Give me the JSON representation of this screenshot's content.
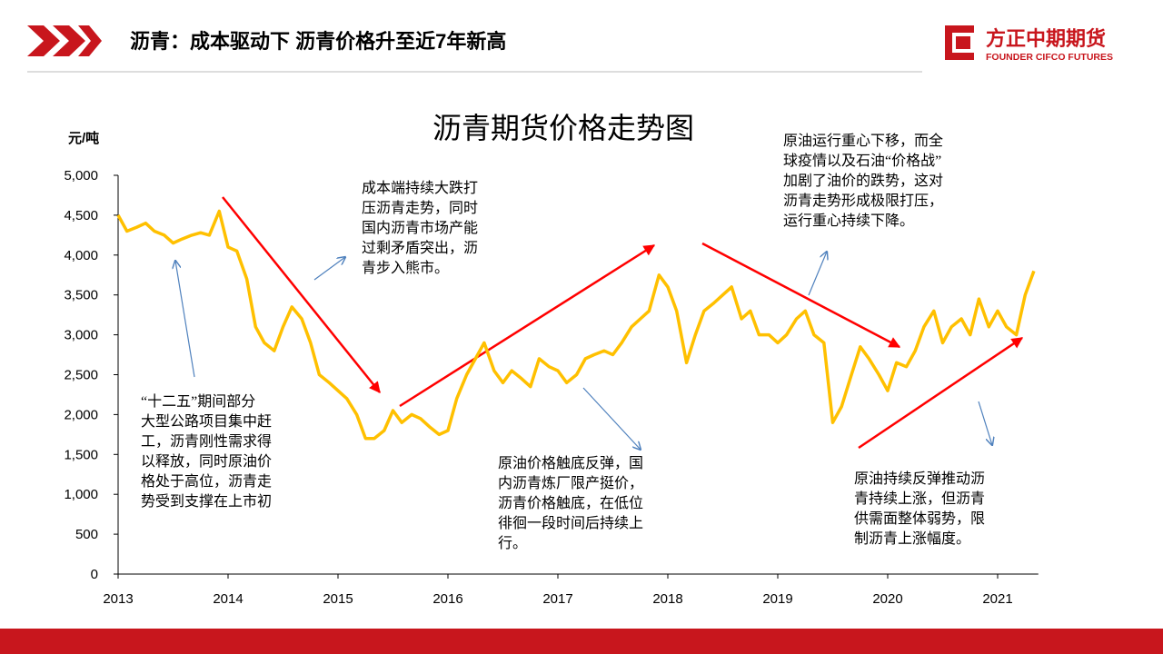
{
  "header": {
    "title": "沥青：成本驱动下 沥青价格升至近7年新高",
    "logo": "方正中期期货",
    "logo_en": "FOUNDER CIFCO FUTURES"
  },
  "chart_data": {
    "type": "line",
    "title": "沥青期货价格走势图",
    "y_label": "元/吨",
    "color": "#FFC000",
    "x": [
      2013,
      2013.08,
      2013.17,
      2013.25,
      2013.33,
      2013.42,
      2013.5,
      2013.58,
      2013.67,
      2013.75,
      2013.83,
      2013.92,
      2014,
      2014.08,
      2014.17,
      2014.25,
      2014.33,
      2014.42,
      2014.5,
      2014.58,
      2014.67,
      2014.75,
      2014.83,
      2014.92,
      2015,
      2015.08,
      2015.17,
      2015.25,
      2015.33,
      2015.42,
      2015.5,
      2015.58,
      2015.67,
      2015.75,
      2015.83,
      2015.92,
      2016,
      2016.08,
      2016.17,
      2016.25,
      2016.33,
      2016.42,
      2016.5,
      2016.58,
      2016.67,
      2016.75,
      2016.83,
      2016.92,
      2017,
      2017.08,
      2017.17,
      2017.25,
      2017.33,
      2017.42,
      2017.5,
      2017.58,
      2017.67,
      2017.75,
      2017.83,
      2017.92,
      2018,
      2018.08,
      2018.17,
      2018.25,
      2018.33,
      2018.42,
      2018.5,
      2018.58,
      2018.67,
      2018.75,
      2018.83,
      2018.92,
      2019,
      2019.08,
      2019.17,
      2019.25,
      2019.33,
      2019.42,
      2019.5,
      2019.58,
      2019.67,
      2019.75,
      2019.83,
      2019.92,
      2020,
      2020.08,
      2020.17,
      2020.25,
      2020.33,
      2020.42,
      2020.5,
      2020.58,
      2020.67,
      2020.75,
      2020.83,
      2020.92,
      2021,
      2021.08,
      2021.17,
      2021.25,
      2021.33
    ],
    "series": [
      {
        "name": "沥青期货",
        "color": "#FFC000",
        "values": [
          4500,
          4300,
          4350,
          4400,
          4300,
          4250,
          4150,
          4200,
          4250,
          4280,
          4250,
          4550,
          4100,
          4050,
          3700,
          3100,
          2900,
          2800,
          3100,
          3350,
          3200,
          2900,
          2500,
          2400,
          2300,
          2200,
          2000,
          1700,
          1700,
          1800,
          2050,
          1900,
          2000,
          1950,
          1850,
          1750,
          1800,
          2200,
          2500,
          2700,
          2900,
          2550,
          2400,
          2550,
          2450,
          2350,
          2700,
          2600,
          2550,
          2400,
          2500,
          2700,
          2750,
          2800,
          2750,
          2900,
          3100,
          3200,
          3300,
          3750,
          3600,
          3300,
          2650,
          3000,
          3300,
          3400,
          3500,
          3600,
          3200,
          3300,
          3000,
          3000,
          2900,
          3000,
          3200,
          3300,
          3000,
          2900,
          1900,
          2100,
          2500,
          2850,
          2700,
          2500,
          2300,
          2650,
          2600,
          2800,
          3100,
          3300,
          2900,
          3100,
          3200,
          3000,
          3450,
          3100,
          3300,
          3100,
          3000,
          3500,
          3800
        ]
      }
    ],
    "xlim": [
      2013,
      2021.37
    ],
    "xticks": [
      2013,
      2014,
      2015,
      2016,
      2017,
      2018,
      2019,
      2020,
      2021
    ],
    "ylim": [
      0,
      5000
    ],
    "yticks": [
      0,
      500,
      {
        "value": 1000,
        "label": "1,000"
      },
      {
        "value": 1500,
        "label": "1,500"
      },
      {
        "value": 2000,
        "label": "2,000"
      },
      {
        "value": 2500,
        "label": "2,500"
      },
      {
        "value": 3000,
        "label": "3,000"
      },
      {
        "value": 3500,
        "label": "3,500"
      },
      {
        "value": 4000,
        "label": "4,000"
      },
      {
        "value": 4500,
        "label": "4,500"
      },
      {
        "value": 5000,
        "label": "5,000"
      }
    ],
    "annotations": [
      [
        "“十二五”期间部分",
        "大型公路项目集中赶",
        "工，沥青刚性需求得",
        "以释放，同时原油价",
        "格处于高位，沥青走",
        "势受到支撑在上市初"
      ],
      [
        "成本端持续大跌打",
        "压沥青走势，同时",
        "国内沥青市场产能",
        "过剩矛盾突出，沥",
        "青步入熊市。"
      ],
      [
        "原油价格触底反弹，国",
        "内沥青炼厂限产挺价，",
        "沥青价格触底，在低位",
        "徘徊一段时间后持续上",
        "行。"
      ],
      [
        "原油运行重心下移，而全",
        "球疫情以及石油“价格战”",
        "加剧了油价的跌势，这对",
        "沥青走势形成极限打压，",
        "运行重心持续下降。"
      ],
      [
        "原油持续反弹推动沥",
        "青持续上涨，但沥青",
        "供需面整体弱势，限",
        "制沥青上涨幅度。"
      ]
    ]
  }
}
